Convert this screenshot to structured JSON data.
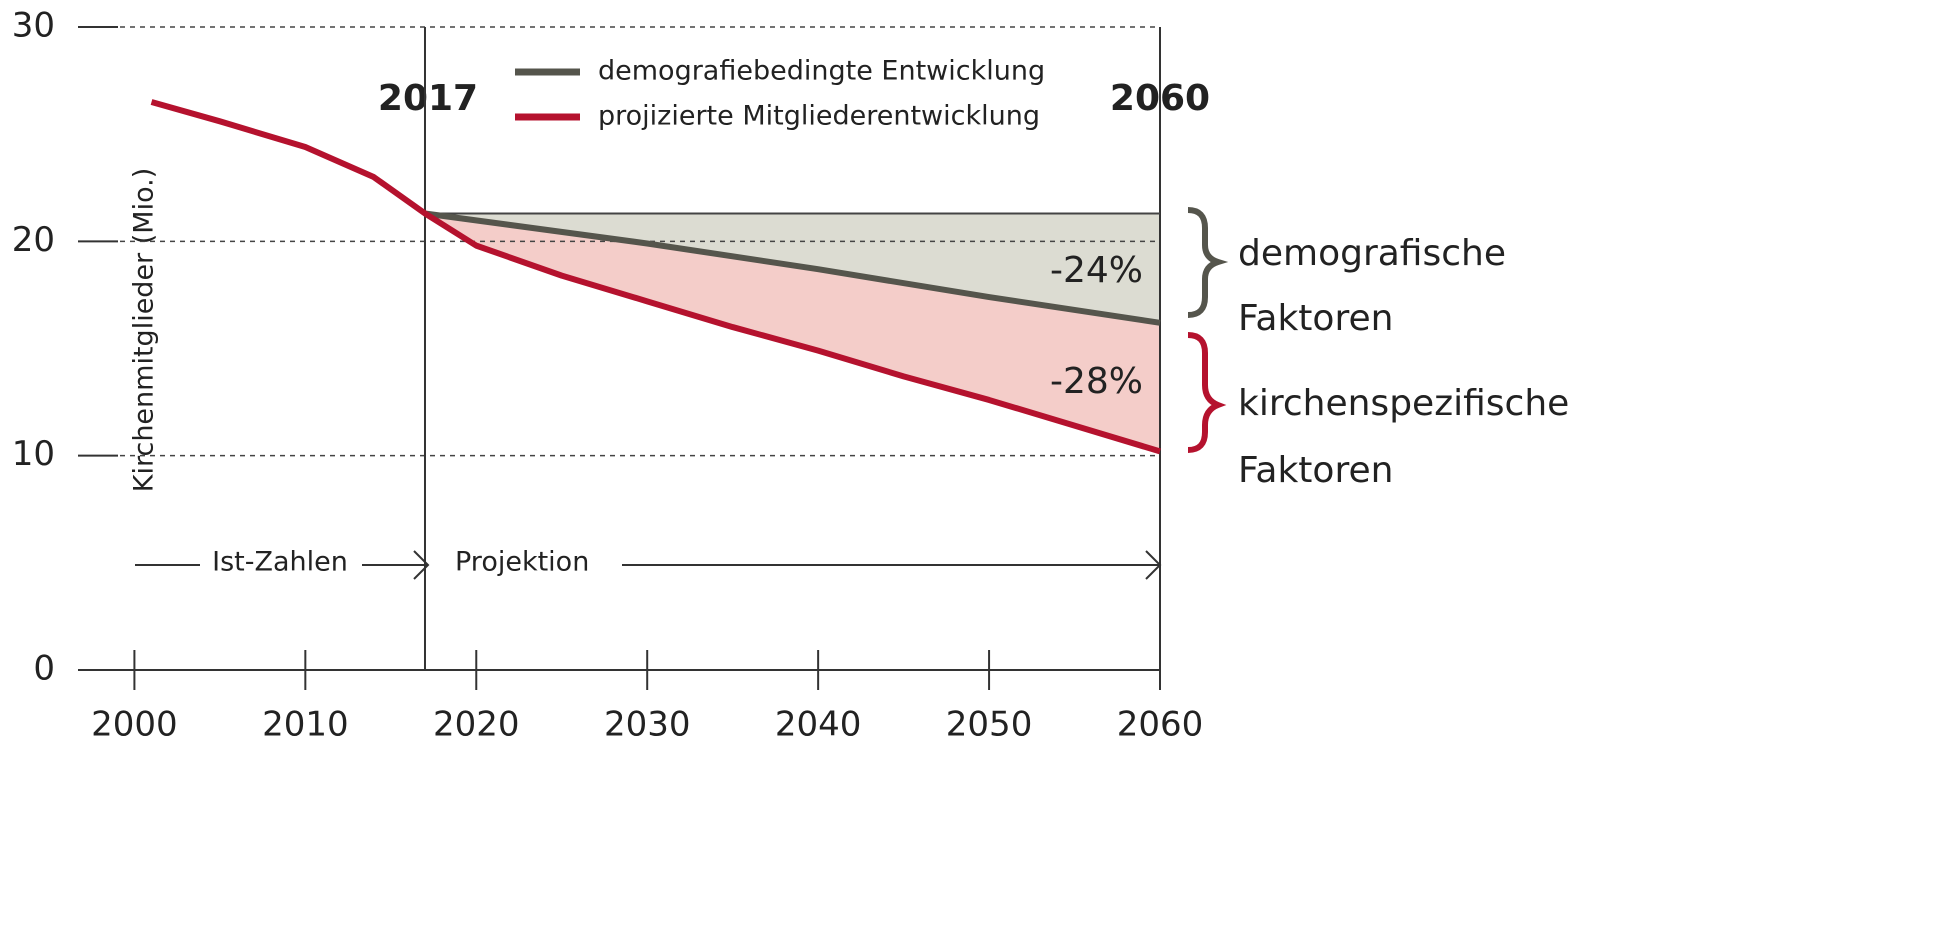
{
  "chart_data": {
    "type": "line",
    "ylabel": "Kirchenmitglieder (Mio.)",
    "xlim": [
      1996.7,
      2060
    ],
    "xticks": [
      2000,
      2010,
      2020,
      2030,
      2040,
      2050,
      2060
    ],
    "ylim": [
      0,
      30
    ],
    "yticks": [
      0,
      10,
      20,
      30
    ],
    "grid": true,
    "series": [
      {
        "name": "demografiebedingte Entwicklung",
        "color": "#55554c",
        "x": [
          2017,
          2030,
          2040,
          2050,
          2060
        ],
        "values": [
          21.3,
          19.9,
          18.7,
          17.4,
          16.2
        ]
      },
      {
        "name": "projizierte Mitgliederentwicklung",
        "color": "#b5122e",
        "x": [
          2001,
          2005,
          2010,
          2014,
          2017,
          2020,
          2025,
          2030,
          2035,
          2040,
          2045,
          2050,
          2055,
          2060
        ],
        "values": [
          26.5,
          25.6,
          24.4,
          23.0,
          21.3,
          19.8,
          18.4,
          17.2,
          16.0,
          14.9,
          13.7,
          12.6,
          11.4,
          10.2
        ]
      }
    ],
    "annotations": {
      "start_year": "2017",
      "end_year": "2060",
      "demo_pct": "-24%",
      "church_pct": "-28%",
      "demo_label_1": "demografische",
      "demo_label_2": "Faktoren",
      "church_label_1": "kirchenspezifische",
      "church_label_2": "Faktoren",
      "actual": "Ist-Zahlen",
      "projection": "Projektion"
    }
  }
}
